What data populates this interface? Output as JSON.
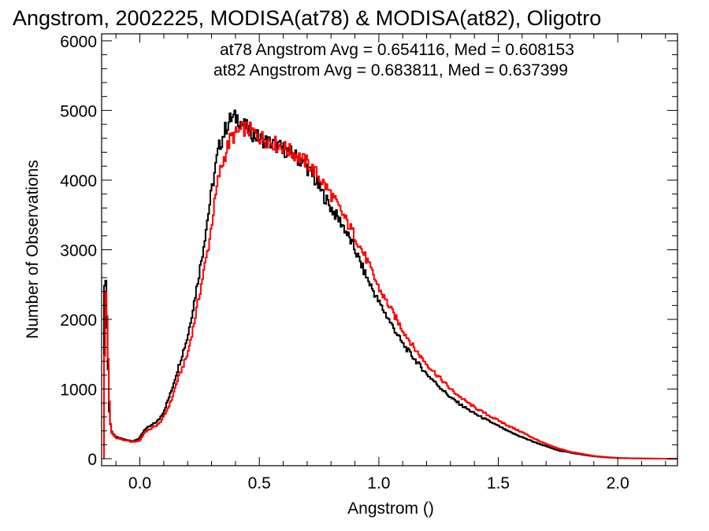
{
  "chart_data": {
    "type": "line",
    "title": "Angstrom, 2002225, MODISA(at78) & MODISA(at82), Oligotro",
    "xlabel": "Angstrom ()",
    "ylabel": "Number of Observations",
    "xlim": [
      -0.16,
      2.25
    ],
    "ylim": [
      -100,
      6100
    ],
    "x_ticks": [
      "0.0",
      "0.5",
      "1.0",
      "1.5",
      "2.0"
    ],
    "x_tick_values": [
      0.0,
      0.5,
      1.0,
      1.5,
      2.0
    ],
    "y_ticks": [
      "0",
      "1000",
      "2000",
      "3000",
      "4000",
      "5000",
      "6000"
    ],
    "y_tick_values": [
      0,
      1000,
      2000,
      3000,
      4000,
      5000,
      6000
    ],
    "annotations": [
      {
        "text": "at78 Angstrom Avg = 0.654116, Med = 0.608153",
        "color": "#000000"
      },
      {
        "text": "at82 Angstrom Avg = 0.683811, Med = 0.637399",
        "color": "#ff0000"
      }
    ],
    "series": [
      {
        "color": "#000000",
        "points": [
          [
            -0.15,
            0
          ],
          [
            -0.148,
            2550
          ],
          [
            -0.142,
            2500
          ],
          [
            -0.135,
            1600
          ],
          [
            -0.128,
            700
          ],
          [
            -0.12,
            400
          ],
          [
            -0.1,
            310
          ],
          [
            -0.07,
            280
          ],
          [
            -0.03,
            250
          ],
          [
            0.0,
            300
          ],
          [
            0.02,
            420
          ],
          [
            0.05,
            480
          ],
          [
            0.08,
            560
          ],
          [
            0.1,
            680
          ],
          [
            0.13,
            950
          ],
          [
            0.16,
            1300
          ],
          [
            0.2,
            1750
          ],
          [
            0.23,
            2300
          ],
          [
            0.26,
            2900
          ],
          [
            0.29,
            3600
          ],
          [
            0.31,
            4050
          ],
          [
            0.33,
            4450
          ],
          [
            0.36,
            4750
          ],
          [
            0.38,
            4880
          ],
          [
            0.41,
            4900
          ],
          [
            0.43,
            4800
          ],
          [
            0.47,
            4680
          ],
          [
            0.5,
            4600
          ],
          [
            0.55,
            4530
          ],
          [
            0.6,
            4450
          ],
          [
            0.65,
            4350
          ],
          [
            0.7,
            4180
          ],
          [
            0.75,
            3900
          ],
          [
            0.8,
            3600
          ],
          [
            0.85,
            3350
          ],
          [
            0.9,
            3000
          ],
          [
            0.95,
            2600
          ],
          [
            1.0,
            2250
          ],
          [
            1.05,
            1950
          ],
          [
            1.1,
            1650
          ],
          [
            1.15,
            1430
          ],
          [
            1.2,
            1220
          ],
          [
            1.25,
            1050
          ],
          [
            1.3,
            880
          ],
          [
            1.35,
            760
          ],
          [
            1.4,
            650
          ],
          [
            1.45,
            560
          ],
          [
            1.5,
            470
          ],
          [
            1.55,
            380
          ],
          [
            1.6,
            310
          ],
          [
            1.65,
            240
          ],
          [
            1.7,
            180
          ],
          [
            1.75,
            120
          ],
          [
            1.8,
            90
          ],
          [
            1.85,
            60
          ],
          [
            1.9,
            35
          ],
          [
            1.95,
            20
          ],
          [
            2.0,
            10
          ],
          [
            2.1,
            3
          ],
          [
            2.25,
            0
          ]
        ]
      },
      {
        "color": "#ff0000",
        "points": [
          [
            -0.15,
            0
          ],
          [
            -0.146,
            2400
          ],
          [
            -0.14,
            2350
          ],
          [
            -0.133,
            1500
          ],
          [
            -0.126,
            650
          ],
          [
            -0.12,
            380
          ],
          [
            -0.1,
            300
          ],
          [
            -0.07,
            270
          ],
          [
            -0.03,
            240
          ],
          [
            0.0,
            260
          ],
          [
            0.02,
            380
          ],
          [
            0.05,
            440
          ],
          [
            0.08,
            500
          ],
          [
            0.1,
            600
          ],
          [
            0.13,
            820
          ],
          [
            0.16,
            1150
          ],
          [
            0.2,
            1500
          ],
          [
            0.23,
            2000
          ],
          [
            0.26,
            2550
          ],
          [
            0.29,
            3100
          ],
          [
            0.31,
            3600
          ],
          [
            0.33,
            4050
          ],
          [
            0.36,
            4400
          ],
          [
            0.38,
            4600
          ],
          [
            0.41,
            4680
          ],
          [
            0.44,
            4750
          ],
          [
            0.47,
            4700
          ],
          [
            0.5,
            4620
          ],
          [
            0.55,
            4550
          ],
          [
            0.6,
            4470
          ],
          [
            0.65,
            4370
          ],
          [
            0.7,
            4250
          ],
          [
            0.75,
            4050
          ],
          [
            0.8,
            3800
          ],
          [
            0.85,
            3500
          ],
          [
            0.9,
            3200
          ],
          [
            0.95,
            2850
          ],
          [
            1.0,
            2450
          ],
          [
            1.05,
            2150
          ],
          [
            1.1,
            1850
          ],
          [
            1.15,
            1580
          ],
          [
            1.2,
            1360
          ],
          [
            1.25,
            1180
          ],
          [
            1.3,
            1000
          ],
          [
            1.35,
            860
          ],
          [
            1.4,
            740
          ],
          [
            1.45,
            640
          ],
          [
            1.5,
            550
          ],
          [
            1.55,
            460
          ],
          [
            1.6,
            380
          ],
          [
            1.65,
            290
          ],
          [
            1.7,
            210
          ],
          [
            1.75,
            150
          ],
          [
            1.8,
            100
          ],
          [
            1.85,
            70
          ],
          [
            1.9,
            40
          ],
          [
            1.95,
            25
          ],
          [
            2.0,
            12
          ],
          [
            2.1,
            4
          ],
          [
            2.25,
            0
          ]
        ]
      }
    ]
  }
}
